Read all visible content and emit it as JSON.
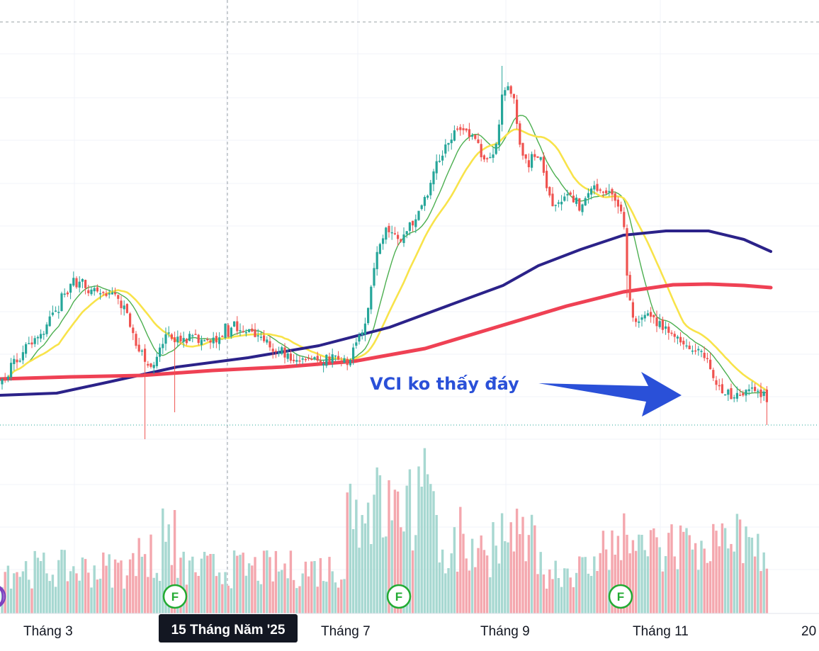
{
  "chart_data": {
    "type": "candlestick",
    "annotation": "VCI ko thấy đáy",
    "crosshair_label": "15 Tháng Năm '25",
    "x_ticks": [
      "Tháng 3",
      "Tháng 7",
      "Tháng 9",
      "Tháng 11",
      "20"
    ],
    "event_markers": [
      "F",
      "F",
      "F"
    ],
    "colors": {
      "up": "#26a69a",
      "down": "#ef5350",
      "volume_up": "#a7d8d1",
      "volume_down": "#f4a7ae",
      "ma_fast": "#4caf50",
      "ma_yellow": "#f8e34a",
      "ma_navy": "#2b2289",
      "ma_red": "#ef4154",
      "arrow": "#2a50d8",
      "event": "#22ab32",
      "badge": "#131722"
    }
  }
}
